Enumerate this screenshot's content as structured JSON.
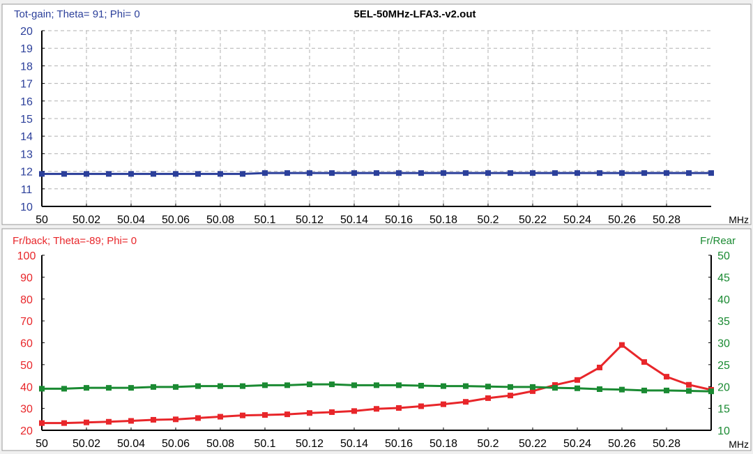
{
  "title": "5EL-50MHz-LFA3.-v2.out",
  "colors": {
    "gain": "#2b3f9a",
    "frback": "#e8262a",
    "frrear": "#1a8a32",
    "axis": "#000000",
    "grid": "#b0b0b0"
  },
  "chart_data": [
    {
      "type": "line",
      "title": "5EL-50MHz-LFA3.-v2.out",
      "ylabel": "Tot-gain; Theta= 91; Phi= 0",
      "xlabel": "MHz",
      "xlim": [
        50,
        50.3
      ],
      "ylim": [
        10,
        20
      ],
      "grid": true,
      "x_ticks": [
        "50",
        "50.02",
        "50.04",
        "50.06",
        "50.08",
        "50.1",
        "50.12",
        "50.14",
        "50.16",
        "50.18",
        "50.2",
        "50.22",
        "50.24",
        "50.26",
        "50.28"
      ],
      "y_ticks": [
        "10",
        "11",
        "12",
        "13",
        "14",
        "15",
        "16",
        "17",
        "18",
        "19",
        "20"
      ],
      "x": [
        50,
        50.01,
        50.02,
        50.03,
        50.04,
        50.05,
        50.06,
        50.07,
        50.08,
        50.09,
        50.1,
        50.11,
        50.12,
        50.13,
        50.14,
        50.15,
        50.16,
        50.17,
        50.18,
        50.19,
        50.2,
        50.21,
        50.22,
        50.23,
        50.24,
        50.25,
        50.26,
        50.27,
        50.28,
        50.29,
        50.3
      ],
      "series": [
        {
          "values": [
            11.85,
            11.85,
            11.85,
            11.85,
            11.85,
            11.85,
            11.85,
            11.85,
            11.85,
            11.85,
            11.9,
            11.9,
            11.9,
            11.9,
            11.9,
            11.9,
            11.9,
            11.9,
            11.9,
            11.9,
            11.9,
            11.9,
            11.9,
            11.9,
            11.9,
            11.9,
            11.9,
            11.9,
            11.9,
            11.9,
            11.9
          ]
        }
      ]
    },
    {
      "type": "line",
      "ylabel": "Fr/back; Theta=-89; Phi= 0",
      "y2label": "Fr/Rear",
      "xlabel": "MHz",
      "xlim": [
        50,
        50.3
      ],
      "ylim": [
        20,
        100
      ],
      "y2lim": [
        10,
        50
      ],
      "grid": false,
      "x_ticks": [
        "50",
        "50.02",
        "50.04",
        "50.06",
        "50.08",
        "50.1",
        "50.12",
        "50.14",
        "50.16",
        "50.18",
        "50.2",
        "50.22",
        "50.24",
        "50.26",
        "50.28"
      ],
      "y_ticks": [
        "20",
        "30",
        "40",
        "50",
        "60",
        "70",
        "80",
        "90",
        "100"
      ],
      "y2_ticks": [
        "10",
        "15",
        "20",
        "25",
        "30",
        "35",
        "40",
        "45",
        "50"
      ],
      "x": [
        50,
        50.01,
        50.02,
        50.03,
        50.04,
        50.05,
        50.06,
        50.07,
        50.08,
        50.09,
        50.1,
        50.11,
        50.12,
        50.13,
        50.14,
        50.15,
        50.16,
        50.17,
        50.18,
        50.19,
        50.2,
        50.21,
        50.22,
        50.23,
        50.24,
        50.25,
        50.26,
        50.27,
        50.28,
        50.29,
        50.3
      ],
      "series": [
        {
          "axis": "left",
          "values": [
            23.3,
            23.3,
            23.6,
            23.9,
            24.3,
            24.8,
            25,
            25.6,
            26.2,
            26.8,
            27,
            27.3,
            27.9,
            28.3,
            28.8,
            29.8,
            30.2,
            31,
            31.9,
            33,
            34.7,
            35.9,
            37.9,
            40.7,
            43,
            48.7,
            59,
            51.2,
            44.5,
            40.8,
            38.5
          ]
        },
        {
          "axis": "right",
          "values": [
            19.5,
            19.5,
            19.7,
            19.7,
            19.7,
            19.9,
            19.9,
            20.1,
            20.1,
            20.1,
            20.3,
            20.3,
            20.5,
            20.5,
            20.3,
            20.3,
            20.3,
            20.2,
            20.1,
            20.1,
            20.0,
            19.9,
            19.9,
            19.7,
            19.6,
            19.4,
            19.3,
            19.1,
            19.1,
            19.0,
            18.9
          ]
        }
      ]
    }
  ]
}
